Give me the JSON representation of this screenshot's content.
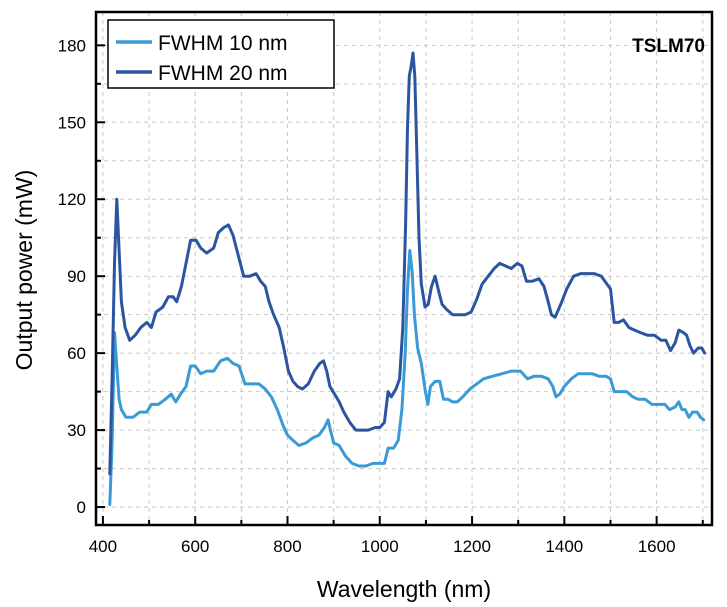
{
  "chart_data": {
    "type": "line",
    "annotation": "TSLM70",
    "xlabel": "Wavelength (nm)",
    "ylabel": "Output power (mW)",
    "xlim": [
      385,
      1720
    ],
    "ylim": [
      -7,
      193
    ],
    "xticks": [
      400,
      600,
      800,
      1000,
      1200,
      1400,
      1600
    ],
    "yticks": [
      0,
      30,
      60,
      90,
      120,
      150,
      180
    ],
    "grid": true,
    "legend_position": "top-left",
    "series": [
      {
        "name": "FWHM 10 nm",
        "color": "#3a9ad6",
        "points": [
          [
            415,
            1
          ],
          [
            420,
            25
          ],
          [
            425,
            68
          ],
          [
            430,
            55
          ],
          [
            435,
            42
          ],
          [
            440,
            38
          ],
          [
            450,
            35
          ],
          [
            465,
            35
          ],
          [
            480,
            37
          ],
          [
            495,
            37
          ],
          [
            505,
            40
          ],
          [
            520,
            40
          ],
          [
            535,
            42
          ],
          [
            548,
            44
          ],
          [
            558,
            41
          ],
          [
            568,
            44
          ],
          [
            580,
            47
          ],
          [
            590,
            55
          ],
          [
            600,
            55
          ],
          [
            612,
            52
          ],
          [
            625,
            53
          ],
          [
            640,
            53
          ],
          [
            655,
            57
          ],
          [
            670,
            58
          ],
          [
            682,
            56
          ],
          [
            695,
            55
          ],
          [
            708,
            48
          ],
          [
            722,
            48
          ],
          [
            738,
            48
          ],
          [
            752,
            46
          ],
          [
            765,
            43
          ],
          [
            778,
            38
          ],
          [
            790,
            32
          ],
          [
            800,
            28
          ],
          [
            812,
            26
          ],
          [
            825,
            24
          ],
          [
            840,
            25
          ],
          [
            855,
            27
          ],
          [
            868,
            28
          ],
          [
            880,
            31
          ],
          [
            888,
            34
          ],
          [
            893,
            30
          ],
          [
            900,
            25
          ],
          [
            912,
            24
          ],
          [
            925,
            20
          ],
          [
            940,
            17
          ],
          [
            955,
            16
          ],
          [
            970,
            16
          ],
          [
            985,
            17
          ],
          [
            1000,
            17
          ],
          [
            1010,
            17
          ],
          [
            1018,
            23
          ],
          [
            1030,
            23
          ],
          [
            1040,
            26
          ],
          [
            1048,
            38
          ],
          [
            1055,
            60
          ],
          [
            1060,
            85
          ],
          [
            1065,
            100
          ],
          [
            1070,
            92
          ],
          [
            1075,
            75
          ],
          [
            1082,
            62
          ],
          [
            1090,
            56
          ],
          [
            1098,
            46
          ],
          [
            1104,
            40
          ],
          [
            1110,
            47
          ],
          [
            1120,
            49
          ],
          [
            1130,
            49
          ],
          [
            1138,
            42
          ],
          [
            1148,
            42
          ],
          [
            1158,
            41
          ],
          [
            1168,
            41
          ],
          [
            1180,
            43
          ],
          [
            1195,
            46
          ],
          [
            1210,
            48
          ],
          [
            1225,
            50
          ],
          [
            1245,
            51
          ],
          [
            1265,
            52
          ],
          [
            1285,
            53
          ],
          [
            1305,
            53
          ],
          [
            1320,
            50
          ],
          [
            1335,
            51
          ],
          [
            1350,
            51
          ],
          [
            1365,
            50
          ],
          [
            1375,
            47
          ],
          [
            1382,
            43
          ],
          [
            1390,
            44
          ],
          [
            1400,
            47
          ],
          [
            1415,
            50
          ],
          [
            1430,
            52
          ],
          [
            1445,
            52
          ],
          [
            1460,
            52
          ],
          [
            1475,
            51
          ],
          [
            1490,
            51
          ],
          [
            1500,
            50
          ],
          [
            1508,
            45
          ],
          [
            1520,
            45
          ],
          [
            1535,
            45
          ],
          [
            1548,
            43
          ],
          [
            1560,
            42
          ],
          [
            1575,
            42
          ],
          [
            1590,
            40
          ],
          [
            1605,
            40
          ],
          [
            1618,
            40
          ],
          [
            1628,
            38
          ],
          [
            1640,
            39
          ],
          [
            1648,
            41
          ],
          [
            1655,
            38
          ],
          [
            1662,
            38
          ],
          [
            1670,
            35
          ],
          [
            1678,
            37
          ],
          [
            1688,
            37
          ],
          [
            1695,
            35
          ],
          [
            1702,
            34
          ]
        ]
      },
      {
        "name": "FWHM 20 nm",
        "color": "#2b55a0",
        "points": [
          [
            415,
            13
          ],
          [
            420,
            50
          ],
          [
            425,
            95
          ],
          [
            430,
            120
          ],
          [
            435,
            100
          ],
          [
            440,
            80
          ],
          [
            448,
            70
          ],
          [
            458,
            65
          ],
          [
            470,
            67
          ],
          [
            482,
            70
          ],
          [
            495,
            72
          ],
          [
            505,
            70
          ],
          [
            515,
            76
          ],
          [
            530,
            78
          ],
          [
            542,
            82
          ],
          [
            552,
            82
          ],
          [
            560,
            80
          ],
          [
            570,
            86
          ],
          [
            580,
            95
          ],
          [
            590,
            104
          ],
          [
            602,
            104
          ],
          [
            612,
            101
          ],
          [
            625,
            99
          ],
          [
            640,
            101
          ],
          [
            650,
            107
          ],
          [
            662,
            109
          ],
          [
            672,
            110
          ],
          [
            682,
            106
          ],
          [
            695,
            97
          ],
          [
            705,
            90
          ],
          [
            718,
            90
          ],
          [
            732,
            91
          ],
          [
            742,
            88
          ],
          [
            752,
            86
          ],
          [
            760,
            80
          ],
          [
            770,
            75
          ],
          [
            782,
            70
          ],
          [
            792,
            62
          ],
          [
            802,
            53
          ],
          [
            812,
            49
          ],
          [
            822,
            47
          ],
          [
            832,
            46
          ],
          [
            845,
            48
          ],
          [
            858,
            53
          ],
          [
            870,
            56
          ],
          [
            878,
            57
          ],
          [
            885,
            53
          ],
          [
            892,
            47
          ],
          [
            902,
            44
          ],
          [
            912,
            41
          ],
          [
            922,
            37
          ],
          [
            935,
            33
          ],
          [
            948,
            30
          ],
          [
            960,
            30
          ],
          [
            975,
            30
          ],
          [
            990,
            31
          ],
          [
            1000,
            31
          ],
          [
            1010,
            33
          ],
          [
            1018,
            45
          ],
          [
            1025,
            43
          ],
          [
            1035,
            46
          ],
          [
            1043,
            50
          ],
          [
            1050,
            70
          ],
          [
            1056,
            110
          ],
          [
            1060,
            148
          ],
          [
            1064,
            168
          ],
          [
            1068,
            172
          ],
          [
            1072,
            177
          ],
          [
            1076,
            168
          ],
          [
            1080,
            140
          ],
          [
            1085,
            105
          ],
          [
            1090,
            87
          ],
          [
            1098,
            78
          ],
          [
            1105,
            79
          ],
          [
            1112,
            86
          ],
          [
            1120,
            90
          ],
          [
            1128,
            84
          ],
          [
            1135,
            79
          ],
          [
            1145,
            77
          ],
          [
            1158,
            75
          ],
          [
            1172,
            75
          ],
          [
            1185,
            75
          ],
          [
            1198,
            76
          ],
          [
            1210,
            81
          ],
          [
            1222,
            87
          ],
          [
            1235,
            90
          ],
          [
            1248,
            93
          ],
          [
            1260,
            95
          ],
          [
            1272,
            94
          ],
          [
            1285,
            93
          ],
          [
            1298,
            95
          ],
          [
            1308,
            94
          ],
          [
            1318,
            88
          ],
          [
            1330,
            88
          ],
          [
            1345,
            89
          ],
          [
            1356,
            86
          ],
          [
            1365,
            80
          ],
          [
            1372,
            75
          ],
          [
            1380,
            74
          ],
          [
            1392,
            79
          ],
          [
            1405,
            85
          ],
          [
            1420,
            90
          ],
          [
            1435,
            91
          ],
          [
            1450,
            91
          ],
          [
            1465,
            91
          ],
          [
            1480,
            90
          ],
          [
            1492,
            87
          ],
          [
            1500,
            85
          ],
          [
            1508,
            72
          ],
          [
            1518,
            72
          ],
          [
            1528,
            73
          ],
          [
            1540,
            70
          ],
          [
            1552,
            69
          ],
          [
            1565,
            68
          ],
          [
            1580,
            67
          ],
          [
            1595,
            67
          ],
          [
            1610,
            65
          ],
          [
            1620,
            65
          ],
          [
            1630,
            61
          ],
          [
            1640,
            64
          ],
          [
            1648,
            69
          ],
          [
            1658,
            68
          ],
          [
            1665,
            67
          ],
          [
            1672,
            63
          ],
          [
            1680,
            60
          ],
          [
            1690,
            62
          ],
          [
            1698,
            62
          ],
          [
            1704,
            60
          ]
        ]
      }
    ]
  }
}
